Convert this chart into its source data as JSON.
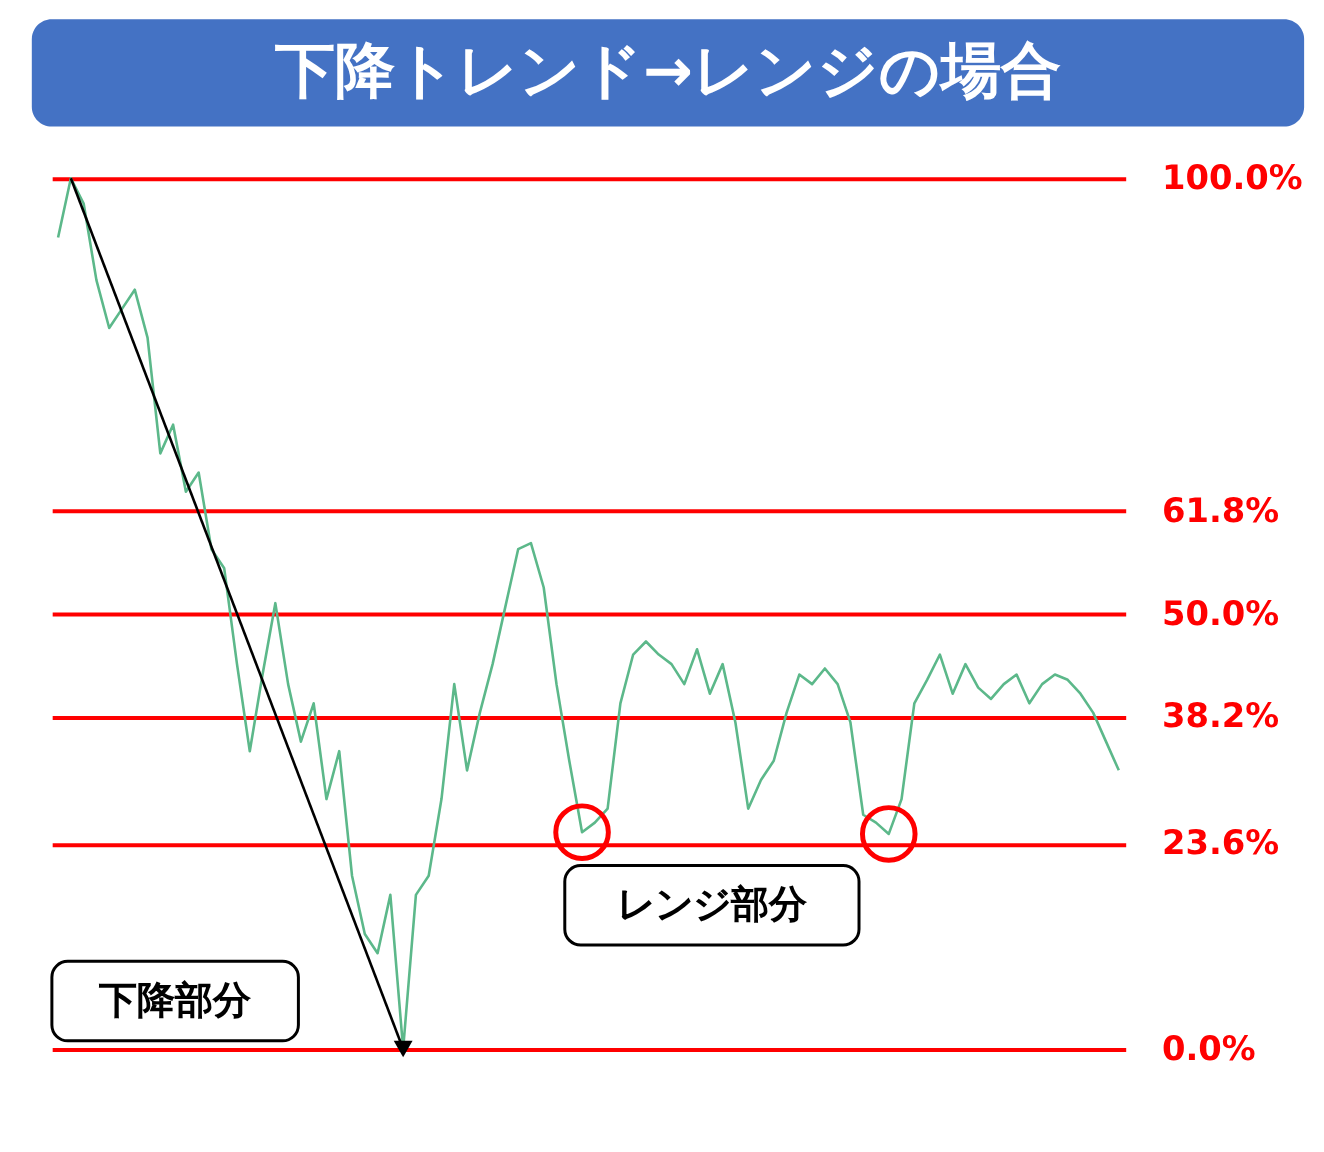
{
  "chart_data": {
    "type": "line",
    "title": "下降トレンド→レンジの場合",
    "categories": [
      null,
      null,
      null,
      null,
      null,
      null,
      null,
      null,
      null,
      null,
      null,
      null,
      null,
      null,
      null,
      null,
      null,
      null,
      null,
      null,
      null,
      null,
      null,
      null,
      null,
      null,
      null,
      null,
      null,
      null,
      null,
      null,
      null,
      null,
      null,
      null,
      null,
      null,
      null,
      null,
      null,
      null,
      null,
      null,
      null,
      null,
      null,
      null,
      null,
      null,
      null,
      null,
      null,
      null,
      null,
      null,
      null,
      null,
      null,
      null,
      null,
      null,
      null,
      null,
      null,
      null,
      null,
      null,
      null,
      null,
      null,
      null,
      null,
      null,
      null,
      null,
      null,
      null,
      null,
      null,
      null,
      null,
      null,
      null
    ],
    "series": [
      {
        "color": "#5cb88a",
        "values": [
          93.2,
          100,
          97.1,
          88.3,
          82.8,
          85,
          87.2,
          81.7,
          68.4,
          71.7,
          64,
          66.2,
          57.4,
          55.2,
          44.2,
          34.2,
          43,
          51.2,
          41.9,
          35.3,
          39.7,
          28.7,
          34.2,
          19.9,
          13.2,
          11,
          17.7,
          0,
          17.7,
          19.9,
          28.7,
          41.9,
          32,
          38.6,
          44.2,
          50.8,
          57.4,
          58.1,
          53,
          41.9,
          33.1,
          24.9,
          26,
          27.6,
          39.7,
          45.3,
          46.8,
          45.3,
          44.2,
          41.9,
          45.9,
          40.8,
          44.2,
          37.5,
          27.6,
          30.9,
          33.1,
          38.6,
          43,
          41.9,
          43.7,
          41.9,
          37.5,
          26.9,
          26,
          24.7,
          28.7,
          39.7,
          42.4,
          45.3,
          40.8,
          44.2,
          41.5,
          40.2,
          41.9,
          43,
          39.7,
          41.9,
          43,
          42.4,
          40.8,
          38.6,
          35.3,
          32
        ]
      },
      {
        "type": "line",
        "color": "#000000",
        "values": [
          null,
          100,
          null,
          null,
          null,
          null,
          null,
          null,
          null,
          null,
          null,
          null,
          null,
          null,
          null,
          null,
          null,
          null,
          null,
          null,
          null,
          null,
          null,
          null,
          null,
          null,
          null,
          0,
          null,
          null,
          null,
          null,
          null,
          null,
          null,
          null,
          null,
          null,
          null,
          null,
          null,
          null,
          null,
          null,
          null,
          null,
          null,
          null,
          null,
          null,
          null,
          null,
          null,
          null,
          null,
          null,
          null,
          null,
          null,
          null,
          null,
          null,
          null,
          null,
          null,
          null,
          null,
          null,
          null,
          null,
          null,
          null,
          null,
          null,
          null,
          null,
          null,
          null,
          null,
          null,
          null,
          null,
          null,
          null
        ]
      },
      {
        "type": "scatter",
        "marker": "circle",
        "color": "#ff0000",
        "values": [
          null,
          null,
          null,
          null,
          null,
          null,
          null,
          null,
          null,
          null,
          null,
          null,
          null,
          null,
          null,
          null,
          null,
          null,
          null,
          null,
          null,
          null,
          null,
          null,
          null,
          null,
          null,
          null,
          null,
          null,
          null,
          null,
          null,
          null,
          null,
          null,
          null,
          null,
          null,
          null,
          null,
          24.9,
          null,
          null,
          null,
          null,
          null,
          null,
          null,
          null,
          null,
          null,
          null,
          null,
          null,
          null,
          null,
          null,
          null,
          null,
          null,
          null,
          null,
          null,
          null,
          24.7,
          null,
          null,
          null,
          null,
          null,
          null,
          null,
          null,
          null,
          null,
          null,
          null,
          null,
          null,
          null,
          null,
          null,
          null
        ]
      }
    ],
    "ylim": [
      0,
      100
    ],
    "tick_labels": "y",
    "grid": "y",
    "yticks": [
      {
        "value": 100,
        "label": "100.0%"
      },
      {
        "value": 61.8,
        "label": "61.8%"
      },
      {
        "value": 50,
        "label": "50.0%"
      },
      {
        "value": 38.2,
        "label": "38.2%"
      },
      {
        "value": 23.6,
        "label": "23.6%"
      },
      {
        "value": 0,
        "label": "0.0%"
      }
    ],
    "annotations": [
      "下降部分",
      "レンジ部分"
    ]
  }
}
